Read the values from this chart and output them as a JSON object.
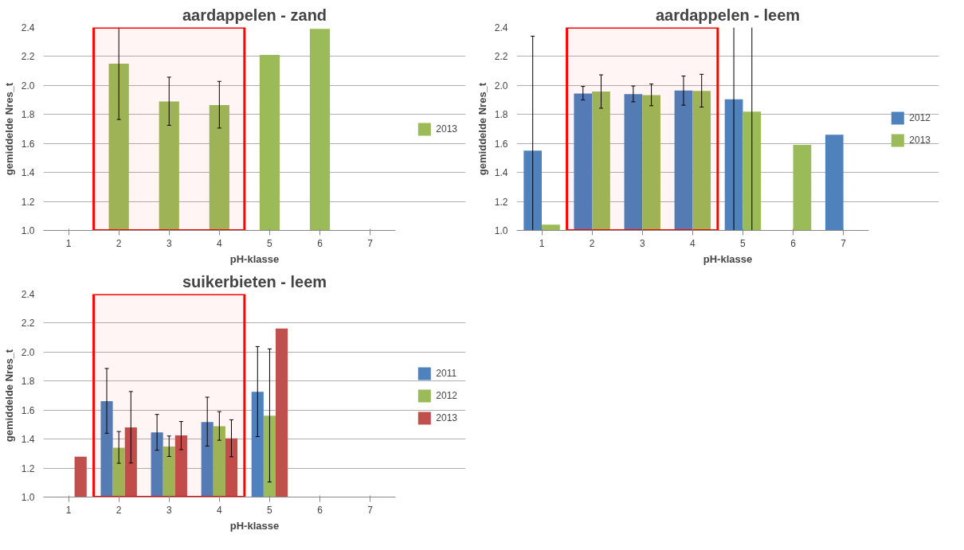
{
  "chart_data": [
    {
      "type": "bar",
      "title": "aardappelen - zand",
      "xlabel": "pH-klasse",
      "ylabel": "gemiddelde Nres_t",
      "xlim": [
        0.5,
        7.5
      ],
      "xticks": [
        1,
        2,
        3,
        4,
        5,
        6,
        7
      ],
      "ylim": [
        1.0,
        2.4
      ],
      "yticks": [
        {
          "value": 1.0,
          "label": "1.0"
        },
        {
          "value": 1.2,
          "label": "1.2"
        },
        {
          "value": 1.4,
          "label": "1.4"
        },
        {
          "value": 1.6,
          "label": "1.6"
        },
        {
          "value": 1.8,
          "label": "1.8"
        },
        {
          "value": 2.0,
          "label": "2.0"
        },
        {
          "value": 2.2,
          "label": "2.2"
        },
        {
          "value": 2.4,
          "label": "2.4"
        }
      ],
      "grid": "y",
      "legend": "right",
      "bands": [
        {
          "axis": "x",
          "from": 1.5,
          "to": 4.5,
          "color": "#ff0000"
        }
      ],
      "series": [
        {
          "name": "2013",
          "color": "#9bbb59",
          "x": [
            2,
            3,
            4,
            5,
            6
          ],
          "values": [
            2.15,
            1.89,
            1.865,
            2.21,
            2.39
          ],
          "errors": [
            [
              1.765,
              2.4
            ],
            [
              1.725,
              2.057
            ],
            [
              1.706,
              2.028
            ],
            null,
            null
          ]
        }
      ]
    },
    {
      "type": "bar",
      "title": "aardappelen - leem",
      "xlabel": "pH-klasse",
      "ylabel": "gemiddelde Nres_t",
      "xlim": [
        0.5,
        7.5
      ],
      "xticks": [
        1,
        2,
        3,
        4,
        5,
        6,
        7
      ],
      "ylim": [
        1.0,
        2.4
      ],
      "yticks": [
        {
          "value": 1.0,
          "label": "1.0"
        },
        {
          "value": 1.2,
          "label": "1.2"
        },
        {
          "value": 1.4,
          "label": "1.4"
        },
        {
          "value": 1.6,
          "label": "1.6"
        },
        {
          "value": 1.8,
          "label": "1.8"
        },
        {
          "value": 2.0,
          "label": "2.0"
        },
        {
          "value": 2.2,
          "label": "2.2"
        },
        {
          "value": 2.4,
          "label": "2.4"
        }
      ],
      "grid": "y",
      "legend": "right",
      "bands": [
        {
          "axis": "x",
          "from": 1.5,
          "to": 4.5,
          "color": "#ff0000"
        }
      ],
      "series": [
        {
          "name": "2012",
          "color": "#4f81bd",
          "x": [
            1,
            2,
            3,
            4,
            5,
            7
          ],
          "values": [
            1.55,
            1.945,
            1.94,
            1.965,
            1.905,
            1.66
          ],
          "errors": [
            [
              1.0,
              2.34
            ],
            [
              1.9,
              1.993
            ],
            [
              1.887,
              1.996
            ],
            [
              1.864,
              2.065
            ],
            [
              1.0,
              2.4
            ],
            null
          ]
        },
        {
          "name": "2013",
          "color": "#9bbb59",
          "x": [
            1,
            2,
            3,
            4,
            5,
            6
          ],
          "values": [
            1.04,
            1.958,
            1.933,
            1.962,
            1.82,
            1.59
          ],
          "errors": [
            null,
            [
              1.843,
              2.073
            ],
            [
              1.86,
              2.01
            ],
            [
              1.851,
              2.077
            ],
            [
              1.0,
              2.4
            ],
            null
          ]
        }
      ]
    },
    {
      "type": "bar",
      "title": "suikerbieten - leem",
      "xlabel": "pH-klasse",
      "ylabel": "gemiddelde Nres_t",
      "xlim": [
        0.5,
        7.5
      ],
      "xticks": [
        1,
        2,
        3,
        4,
        5,
        6,
        7
      ],
      "ylim": [
        1.0,
        2.4
      ],
      "yticks": [
        {
          "value": 1.0,
          "label": "1.0"
        },
        {
          "value": 1.2,
          "label": "1.2"
        },
        {
          "value": 1.4,
          "label": "1.4"
        },
        {
          "value": 1.6,
          "label": "1.6"
        },
        {
          "value": 1.8,
          "label": "1.8"
        },
        {
          "value": 2.0,
          "label": "2.0"
        },
        {
          "value": 2.2,
          "label": "2.2"
        },
        {
          "value": 2.4,
          "label": "2.4"
        }
      ],
      "grid": "y",
      "legend": "right",
      "bands": [
        {
          "axis": "x",
          "from": 1.5,
          "to": 4.5,
          "color": "#ff0000"
        }
      ],
      "series": [
        {
          "name": "2011",
          "color": "#4f81bd",
          "x": [
            2,
            3,
            4,
            5
          ],
          "values": [
            1.662,
            1.446,
            1.517,
            1.726
          ],
          "errors": [
            [
              1.44,
              1.887
            ],
            [
              1.323,
              1.57
            ],
            [
              1.352,
              1.689
            ],
            [
              1.417,
              2.038
            ]
          ]
        },
        {
          "name": "2012",
          "color": "#9bbb59",
          "x": [
            2,
            3,
            4,
            5
          ],
          "values": [
            1.341,
            1.349,
            1.488,
            1.562
          ],
          "errors": [
            [
              1.233,
              1.452
            ],
            [
              1.28,
              1.421
            ],
            [
              1.392,
              1.589
            ],
            [
              1.104,
              2.022
            ]
          ]
        },
        {
          "name": "2013",
          "color": "#c0504d",
          "x": [
            1,
            2,
            3,
            4,
            5
          ],
          "values": [
            1.278,
            1.48,
            1.425,
            1.405,
            2.163
          ],
          "errors": [
            null,
            [
              1.235,
              1.728
            ],
            [
              1.327,
              1.521
            ],
            [
              1.278,
              1.533
            ],
            null
          ]
        }
      ]
    }
  ]
}
